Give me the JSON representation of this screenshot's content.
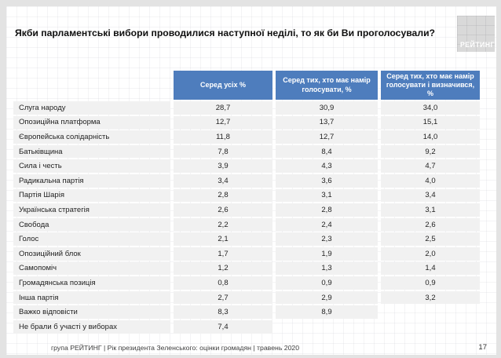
{
  "page": {
    "title": "Якби парламентські вибори проводилися наступної неділі, то як би Ви проголосували?",
    "logo": "РЕЙТИНГ",
    "footer": "група РЕЙТИНГ |  Рік президента Зеленського: оцінки громадян | травень 2020",
    "page_number": "17"
  },
  "table": {
    "columns": [
      "Серед усіх %",
      "Серед тих, хто має намір голосувати, %",
      "Серед тих, хто має намір голосувати і визначився, %"
    ],
    "rows": [
      {
        "label": "Слуга народу",
        "all": "28,7",
        "intend": "30,9",
        "decided": "34,0"
      },
      {
        "label": "Опозиційна платформа",
        "all": "12,7",
        "intend": "13,7",
        "decided": "15,1"
      },
      {
        "label": "Європейська солідарність",
        "all": "11,8",
        "intend": "12,7",
        "decided": "14,0"
      },
      {
        "label": "Батьківщина",
        "all": "7,8",
        "intend": "8,4",
        "decided": "9,2"
      },
      {
        "label": "Сила і честь",
        "all": "3,9",
        "intend": "4,3",
        "decided": "4,7"
      },
      {
        "label": "Радикальна партія",
        "all": "3,4",
        "intend": "3,6",
        "decided": "4,0"
      },
      {
        "label": "Партія Шарія",
        "all": "2,8",
        "intend": "3,1",
        "decided": "3,4"
      },
      {
        "label": "Українська стратегія",
        "all": "2,6",
        "intend": "2,8",
        "decided": "3,1"
      },
      {
        "label": "Свобода",
        "all": "2,2",
        "intend": "2,4",
        "decided": "2,6"
      },
      {
        "label": "Голос",
        "all": "2,1",
        "intend": "2,3",
        "decided": "2,5"
      },
      {
        "label": "Опозиційний блок",
        "all": "1,7",
        "intend": "1,9",
        "decided": "2,0"
      },
      {
        "label": "Самопоміч",
        "all": "1,2",
        "intend": "1,3",
        "decided": "1,4"
      },
      {
        "label": "Громадянська позиція",
        "all": "0,8",
        "intend": "0,9",
        "decided": "0,9"
      },
      {
        "label": "Інша партія",
        "all": "2,7",
        "intend": "2,9",
        "decided": "3,2"
      },
      {
        "label": "Важко відповісти",
        "all": "8,3",
        "intend": "8,9",
        "decided": ""
      },
      {
        "label": "Не брали б участі у виборах",
        "all": "7,4",
        "intend": "",
        "decided": ""
      }
    ]
  },
  "colors": {
    "header_blue": "#4e7dbd",
    "cell_gray": "#f1f1f1",
    "frame_gray": "#e3e3e3",
    "logo_gray": "#d9d9d9"
  },
  "chart_data": {
    "type": "table",
    "title": "Якби парламентські вибори проводилися наступної неділі, то як би Ви проголосували?",
    "categories": [
      "Слуга народу",
      "Опозиційна платформа",
      "Європейська солідарність",
      "Батьківщина",
      "Сила і честь",
      "Радикальна партія",
      "Партія Шарія",
      "Українська стратегія",
      "Свобода",
      "Голос",
      "Опозиційний блок",
      "Самопоміч",
      "Громадянська позиція",
      "Інша партія",
      "Важко відповісти",
      "Не брали б участі у виборах"
    ],
    "series": [
      {
        "name": "Серед усіх %",
        "values": [
          28.7,
          12.7,
          11.8,
          7.8,
          3.9,
          3.4,
          2.8,
          2.6,
          2.2,
          2.1,
          1.7,
          1.2,
          0.8,
          2.7,
          8.3,
          7.4
        ]
      },
      {
        "name": "Серед тих, хто має намір голосувати, %",
        "values": [
          30.9,
          13.7,
          12.7,
          8.4,
          4.3,
          3.6,
          3.1,
          2.8,
          2.4,
          2.3,
          1.9,
          1.3,
          0.9,
          2.9,
          8.9,
          null
        ]
      },
      {
        "name": "Серед тих, хто має намір голосувати і визначився, %",
        "values": [
          34.0,
          15.1,
          14.0,
          9.2,
          4.7,
          4.0,
          3.4,
          3.1,
          2.6,
          2.5,
          2.0,
          1.4,
          0.9,
          3.2,
          null,
          null
        ]
      }
    ],
    "source": "група РЕЙТИНГ |  Рік президента Зеленського: оцінки громадян | травень 2020",
    "page_number": "17"
  }
}
